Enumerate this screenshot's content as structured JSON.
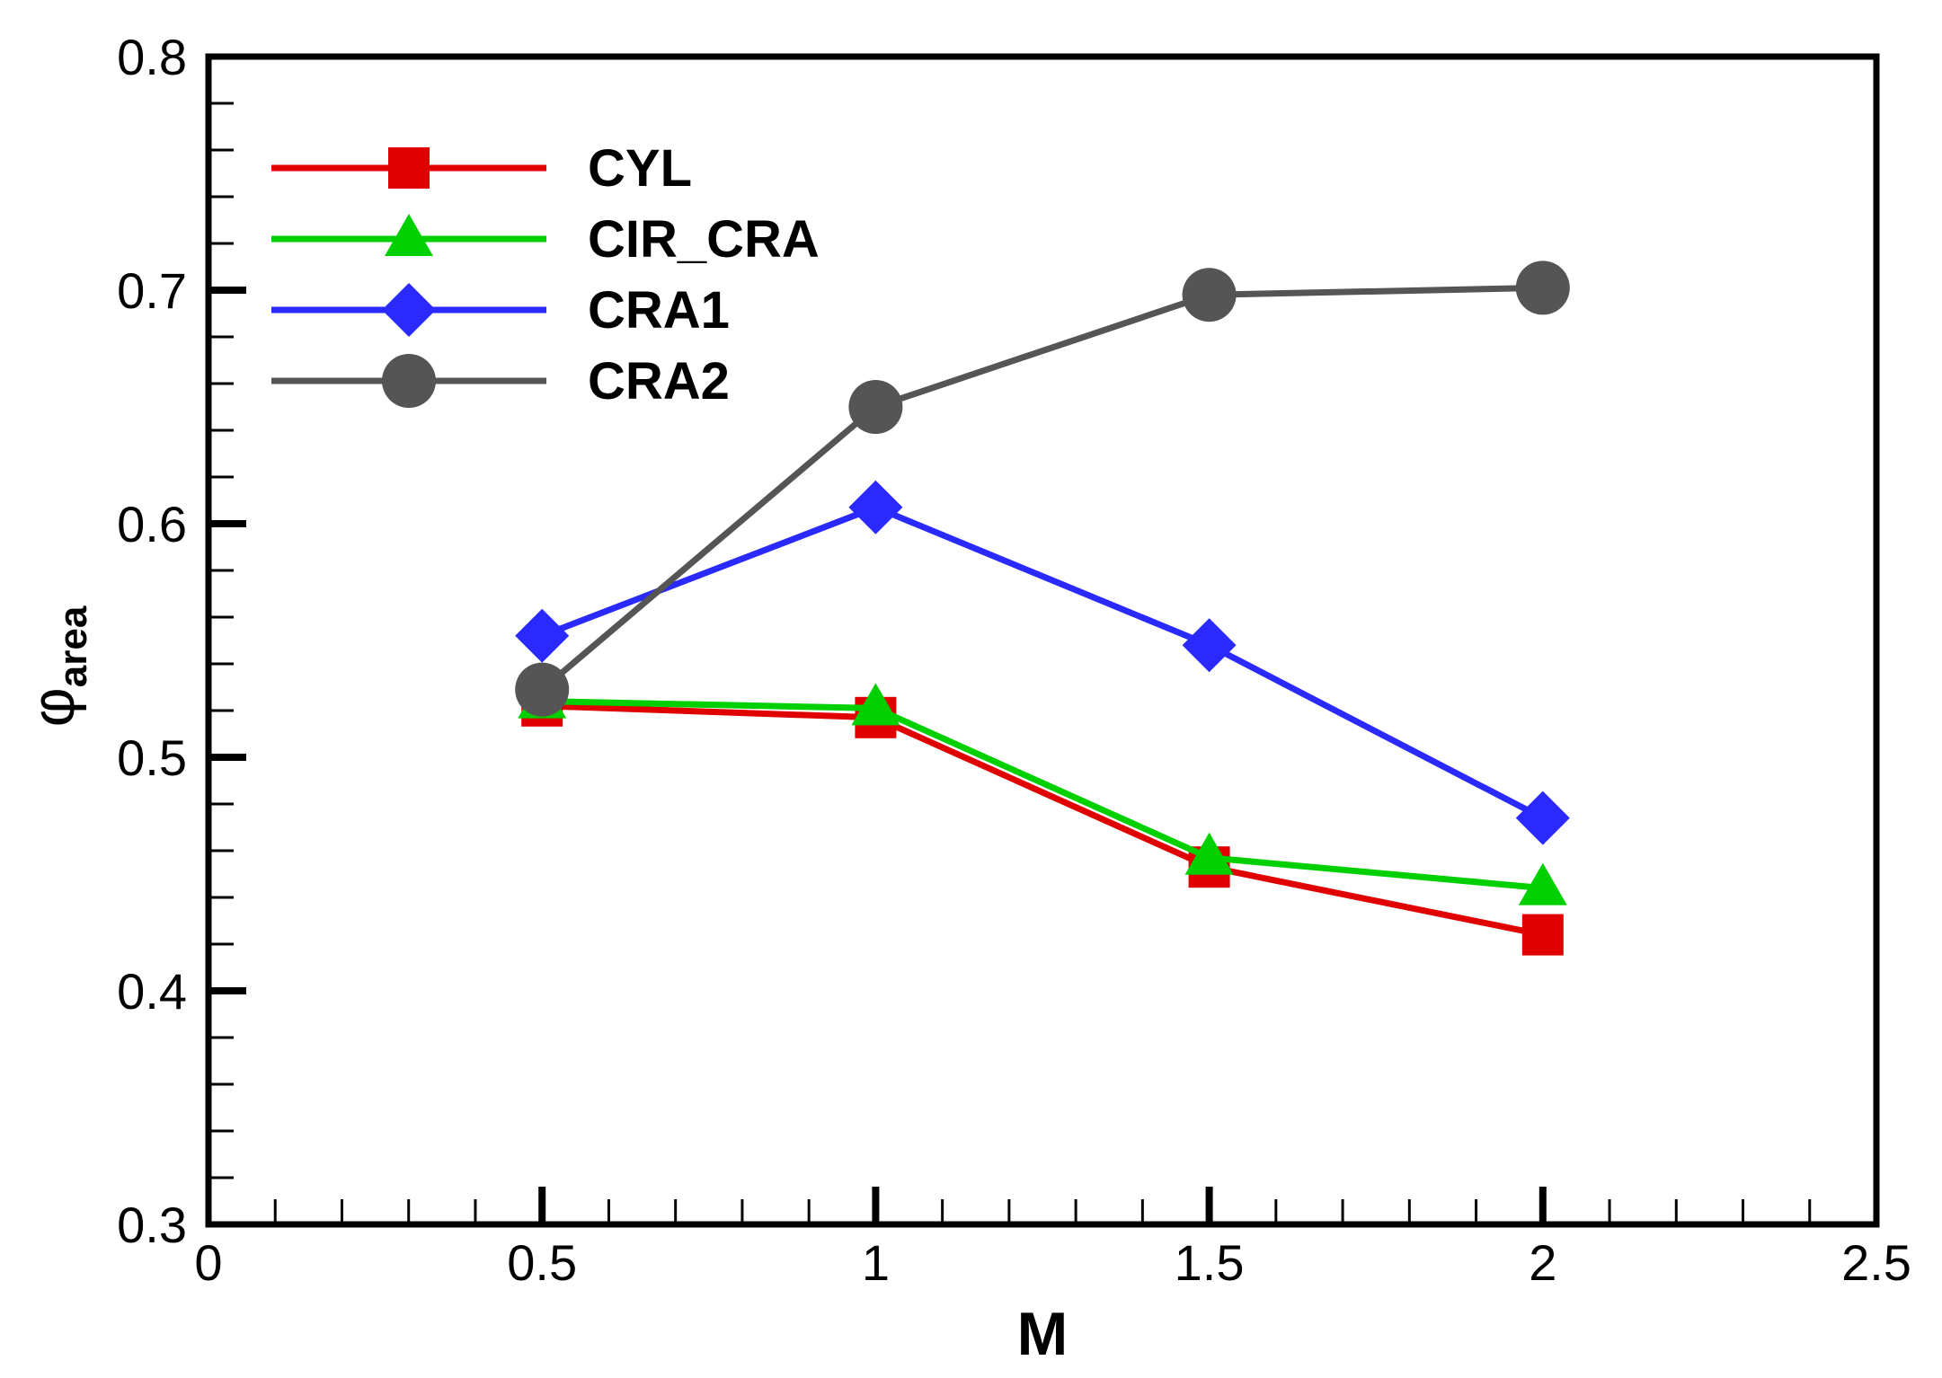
{
  "chart_data": {
    "type": "line",
    "title": "",
    "xlabel": "M",
    "ylabel": "φ",
    "ylabel_subscript": "area",
    "xlim": [
      0,
      2.5
    ],
    "ylim": [
      0.3,
      0.8
    ],
    "x_major_ticks": [
      0,
      0.5,
      1,
      1.5,
      2,
      2.5
    ],
    "x_tick_labels": [
      "0",
      "0.5",
      "1",
      "1.5",
      "2",
      "2.5"
    ],
    "y_major_ticks": [
      0.3,
      0.4,
      0.5,
      0.6,
      0.7,
      0.8
    ],
    "y_tick_labels": [
      "0.3",
      "0.4",
      "0.5",
      "0.6",
      "0.7",
      "0.8"
    ],
    "grid": false,
    "legend_position": "top-left",
    "x": [
      0.5,
      1,
      1.5,
      2
    ],
    "series": [
      {
        "name": "CYL",
        "marker": "square",
        "color": "#e00000",
        "values": [
          0.522,
          0.517,
          0.453,
          0.424
        ]
      },
      {
        "name": "CIR_CRA",
        "marker": "triangle",
        "color": "#00d000",
        "values": [
          0.524,
          0.521,
          0.457,
          0.444
        ]
      },
      {
        "name": "CRA1",
        "marker": "diamond",
        "color": "#2a2aff",
        "values": [
          0.552,
          0.607,
          0.548,
          0.474
        ]
      },
      {
        "name": "CRA2",
        "marker": "circle",
        "color": "#555555",
        "values": [
          0.529,
          0.65,
          0.698,
          0.701
        ]
      }
    ]
  }
}
